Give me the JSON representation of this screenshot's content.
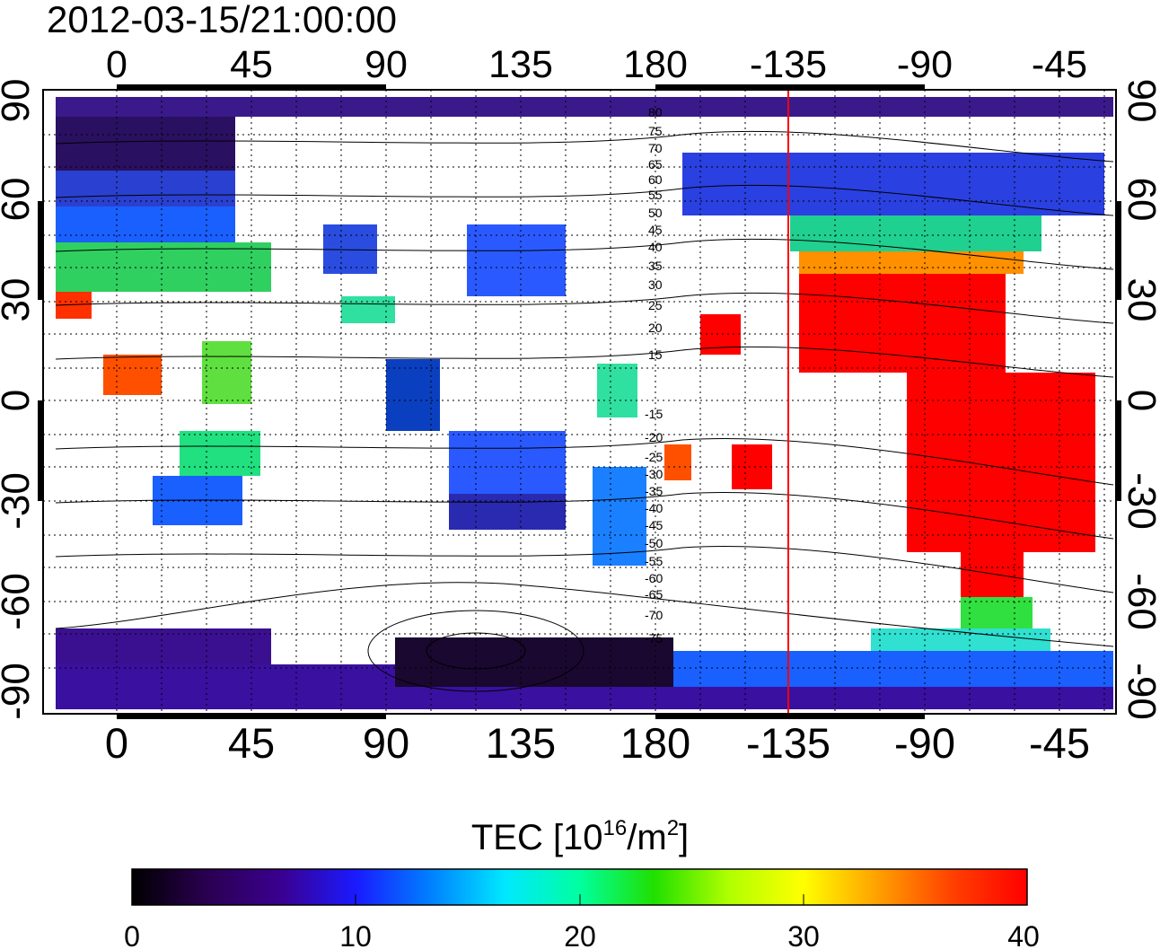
{
  "title": "2012-03-15/21:00:00",
  "map": {
    "lon_ticks_top": [
      "0",
      "45",
      "90",
      "135",
      "180",
      "-135",
      "-90",
      "-45"
    ],
    "lon_ticks_bottom": [
      "0",
      "45",
      "90",
      "135",
      "180",
      "-135",
      "-90",
      "-45"
    ],
    "lat_ticks_left": [
      "90",
      "60",
      "30",
      "0",
      "-30",
      "-60",
      "-90"
    ],
    "lat_ticks_right": [
      "90",
      "60",
      "30",
      "0",
      "-30",
      "-60",
      "-90"
    ],
    "terminator_line_color": "#ff0000",
    "contour_labels_upper": [
      "80",
      "75",
      "70",
      "65",
      "60",
      "55",
      "50",
      "45",
      "40",
      "35",
      "30",
      "25",
      "20",
      "15"
    ],
    "contour_labels_lower": [
      "-15",
      "-20",
      "-25",
      "-30",
      "-35",
      "-40",
      "-45",
      "-50",
      "-55",
      "-60",
      "-65",
      "-70",
      "-75"
    ]
  },
  "colorbar": {
    "label_main": "TEC  [10",
    "label_sup1": "16",
    "label_mid": "/m",
    "label_sup2": "2",
    "label_end": "]",
    "ticks": [
      "0",
      "10",
      "20",
      "30",
      "40"
    ],
    "colors": [
      "#000000",
      "#2a0050",
      "#3a0090",
      "#1a1aff",
      "#0080ff",
      "#00e8ff",
      "#00ffa0",
      "#20e000",
      "#b0ff00",
      "#ffff00",
      "#ffa000",
      "#ff4000",
      "#ff0000"
    ]
  }
}
